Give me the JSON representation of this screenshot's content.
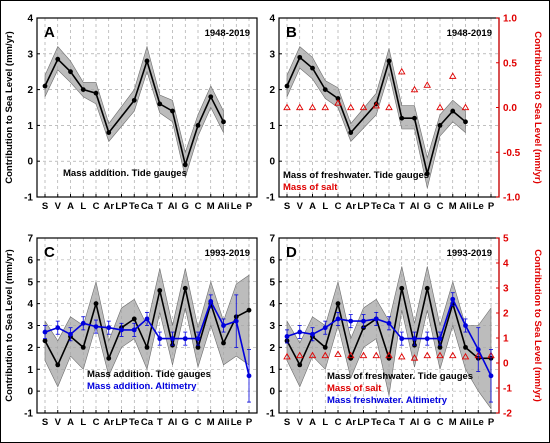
{
  "figure_border_color": "#000000",
  "colors": {
    "black": "#000000",
    "red": "#e00000",
    "blue": "#0000dd",
    "band": "#a6a6a6",
    "grid": "#9a9a9a"
  },
  "station_labels": [
    "S",
    "V",
    "A",
    "L",
    "C",
    "Ar",
    "LP",
    "Te",
    "Ca",
    "T",
    "Al",
    "G",
    "C",
    "M",
    "Ali",
    "Le",
    "P"
  ],
  "chart_data": [
    {
      "panel": "A",
      "type": "line",
      "period": "1948-2019",
      "ylabel": "Contribution to Sea Level (mm/yr)",
      "ylim": [
        -1,
        4
      ],
      "y_ticks": [
        -1,
        0,
        1,
        2,
        3,
        4
      ],
      "y2label": "",
      "grid": true,
      "annotation": [
        "Mass addition. Tide gauges"
      ],
      "series": [
        {
          "color": "black",
          "marker": "dot",
          "band": true,
          "points": [
            [
              0,
              2.1
            ],
            [
              1,
              2.85
            ],
            [
              2,
              2.5
            ],
            [
              3,
              2.0
            ],
            [
              4,
              1.9
            ],
            [
              5,
              0.8
            ],
            [
              7,
              1.7
            ],
            [
              8,
              2.8
            ],
            [
              9,
              1.6
            ],
            [
              10,
              1.4
            ],
            [
              11,
              -0.1
            ],
            [
              12,
              1.0
            ],
            [
              13,
              1.8
            ],
            [
              14,
              1.1
            ]
          ],
          "band_lo": [
            1.8,
            2.55,
            2.2,
            1.8,
            1.6,
            0.55,
            1.4,
            2.5,
            1.35,
            1.1,
            -0.45,
            0.7,
            1.5,
            0.8
          ],
          "band_hi": [
            2.4,
            3.2,
            2.8,
            2.2,
            2.2,
            1.05,
            2.0,
            3.2,
            1.85,
            1.7,
            0.25,
            1.3,
            2.1,
            1.4
          ]
        }
      ]
    },
    {
      "panel": "B",
      "type": "line",
      "period": "1948-2019",
      "ylabel": "",
      "ylim": [
        -1,
        4
      ],
      "y_ticks": [
        -1,
        0,
        1,
        2,
        3,
        4
      ],
      "y2label": "Contribution to Sea Level (mm/yr)",
      "y2lim": [
        -1,
        1
      ],
      "y2_ticks": [
        -1,
        -0.5,
        0,
        0.5,
        1
      ],
      "y2_tick_labels": [
        "-1.0",
        "-0.5",
        "0.0",
        "0.5",
        "1.0"
      ],
      "grid": true,
      "annotation": [
        "Mass of freshwater. Tide gauges",
        "Mass of salt"
      ],
      "series": [
        {
          "color": "black",
          "marker": "dot",
          "band": true,
          "points": [
            [
              0,
              2.1
            ],
            [
              1,
              2.9
            ],
            [
              2,
              2.6
            ],
            [
              3,
              2.0
            ],
            [
              4,
              1.75
            ],
            [
              5,
              0.8
            ],
            [
              7,
              1.6
            ],
            [
              8,
              2.8
            ],
            [
              9,
              1.2
            ],
            [
              10,
              1.2
            ],
            [
              11,
              -0.35
            ],
            [
              12,
              1.0
            ],
            [
              13,
              1.4
            ],
            [
              14,
              1.1
            ]
          ],
          "band_lo": [
            1.8,
            2.6,
            2.3,
            1.75,
            1.5,
            0.55,
            1.3,
            2.45,
            0.9,
            0.9,
            -0.75,
            0.7,
            1.1,
            0.8
          ],
          "band_hi": [
            2.4,
            3.2,
            2.9,
            2.25,
            2.05,
            1.05,
            1.9,
            3.15,
            1.55,
            1.55,
            0.1,
            1.3,
            1.7,
            1.4
          ]
        },
        {
          "color": "red",
          "marker": "triangle",
          "axis": "right",
          "points": [
            [
              0,
              0
            ],
            [
              1,
              0
            ],
            [
              2,
              0
            ],
            [
              3,
              0
            ],
            [
              4,
              0.05
            ],
            [
              5,
              0
            ],
            [
              6,
              0
            ],
            [
              7,
              0.02
            ],
            [
              8,
              0
            ],
            [
              9,
              0.4
            ],
            [
              10,
              0.2
            ],
            [
              11,
              0.25
            ],
            [
              12,
              0
            ],
            [
              13,
              0.35
            ],
            [
              14,
              0
            ]
          ]
        }
      ]
    },
    {
      "panel": "C",
      "type": "line",
      "period": "1993-2019",
      "ylabel": "Contribution to Sea Level (mm/yr)",
      "ylim": [
        -1,
        7
      ],
      "y_ticks": [
        -1,
        0,
        1,
        2,
        3,
        4,
        5,
        6,
        7
      ],
      "y2label": "",
      "grid": true,
      "annotation": [
        "Mass addition. Tide gauges",
        "Mass addition. Altimetry"
      ],
      "series": [
        {
          "color": "black",
          "marker": "dot",
          "band": true,
          "points": [
            [
              0,
              2.3
            ],
            [
              1,
              1.2
            ],
            [
              2,
              2.5
            ],
            [
              3,
              2.0
            ],
            [
              4,
              4.0
            ],
            [
              5,
              1.5
            ],
            [
              6,
              2.9
            ],
            [
              7,
              3.3
            ],
            [
              8,
              2.0
            ],
            [
              9,
              4.6
            ],
            [
              10,
              2.1
            ],
            [
              11,
              4.7
            ],
            [
              12,
              2.0
            ],
            [
              13,
              4.0
            ],
            [
              14,
              2.2
            ],
            [
              15,
              3.4
            ],
            [
              16,
              3.7
            ]
          ],
          "band_lo": [
            1.4,
            0.2,
            1.6,
            1.0,
            3.0,
            0.7,
            2.0,
            2.4,
            1.0,
            3.6,
            1.2,
            3.8,
            1.1,
            3.0,
            1.2,
            1.6,
            1.2
          ],
          "band_hi": [
            3.2,
            2.3,
            3.4,
            3.0,
            5.0,
            2.3,
            3.8,
            4.2,
            3.0,
            5.6,
            3.0,
            5.6,
            2.9,
            5.0,
            3.2,
            4.9,
            5.3
          ]
        },
        {
          "color": "blue",
          "marker": "dot",
          "error_bars": true,
          "points": [
            [
              0,
              2.7
            ],
            [
              1,
              2.9
            ],
            [
              2,
              2.6
            ],
            [
              3,
              3.1
            ],
            [
              4,
              2.95
            ],
            [
              5,
              2.9
            ],
            [
              6,
              2.8
            ],
            [
              7,
              2.8
            ],
            [
              8,
              3.3
            ],
            [
              9,
              2.4
            ],
            [
              10,
              2.4
            ],
            [
              11,
              2.4
            ],
            [
              12,
              2.4
            ],
            [
              13,
              4.1
            ],
            [
              14,
              3.0
            ],
            [
              15,
              3.2
            ],
            [
              16,
              0.7
            ]
          ],
          "err": [
            0.3,
            0.3,
            0.3,
            0.3,
            0.3,
            0.3,
            0.3,
            0.3,
            0.3,
            0.3,
            0.3,
            0.3,
            0.3,
            0.3,
            0.3,
            1.2,
            1.2
          ]
        }
      ]
    },
    {
      "panel": "D",
      "type": "line",
      "period": "1993-2019",
      "ylabel": "",
      "ylim": [
        -1,
        7
      ],
      "y_ticks": [
        -1,
        0,
        1,
        2,
        3,
        4,
        5,
        6,
        7
      ],
      "y2label": "Contribution to Sea Level (mm/yr)",
      "y2lim": [
        -2,
        5
      ],
      "y2_ticks": [
        -2,
        -1,
        0,
        1,
        2,
        3,
        4,
        5
      ],
      "grid": true,
      "annotation": [
        "Mass of freshwater. Tide gauges",
        "Mass of salt",
        "Mass freshwater. Altimetry"
      ],
      "series": [
        {
          "color": "black",
          "marker": "dot",
          "band": true,
          "points": [
            [
              0,
              2.3
            ],
            [
              1,
              1.2
            ],
            [
              2,
              2.5
            ],
            [
              3,
              2.0
            ],
            [
              4,
              4.0
            ],
            [
              5,
              1.5
            ],
            [
              6,
              2.9
            ],
            [
              7,
              3.3
            ],
            [
              8,
              1.5
            ],
            [
              9,
              4.7
            ],
            [
              10,
              2.1
            ],
            [
              11,
              4.7
            ],
            [
              12,
              2.0
            ],
            [
              13,
              4.0
            ],
            [
              14,
              2.0
            ],
            [
              15,
              1.5
            ],
            [
              16,
              1.5
            ]
          ],
          "band_lo": [
            1.4,
            0.2,
            1.6,
            1.0,
            3.0,
            0.6,
            2.0,
            2.4,
            -0.2,
            3.7,
            1.1,
            3.7,
            1.0,
            3.0,
            1.0,
            0.0,
            -0.8
          ],
          "band_hi": [
            3.2,
            2.2,
            3.4,
            3.0,
            5.0,
            2.4,
            3.8,
            4.2,
            3.2,
            5.7,
            3.1,
            5.7,
            3.0,
            5.0,
            3.0,
            3.0,
            3.8
          ]
        },
        {
          "color": "red",
          "marker": "triangle",
          "axis": "right",
          "points": [
            [
              0,
              0.25
            ],
            [
              1,
              0.3
            ],
            [
              2,
              0.3
            ],
            [
              3,
              0.3
            ],
            [
              4,
              0.35
            ],
            [
              5,
              0.3
            ],
            [
              6,
              0.3
            ],
            [
              7,
              0.3
            ],
            [
              8,
              0.3
            ],
            [
              9,
              0.25
            ],
            [
              10,
              0.2
            ],
            [
              11,
              0.3
            ],
            [
              12,
              0.3
            ],
            [
              13,
              0.3
            ],
            [
              14,
              0.25
            ],
            [
              15,
              0.3
            ],
            [
              16,
              0.3
            ]
          ]
        },
        {
          "color": "blue",
          "marker": "dot",
          "error_bars": true,
          "points": [
            [
              0,
              2.5
            ],
            [
              1,
              2.7
            ],
            [
              2,
              2.6
            ],
            [
              3,
              2.9
            ],
            [
              4,
              3.3
            ],
            [
              5,
              3.2
            ],
            [
              6,
              3.2
            ],
            [
              7,
              3.3
            ],
            [
              8,
              3.1
            ],
            [
              9,
              2.4
            ],
            [
              10,
              2.4
            ],
            [
              11,
              2.4
            ],
            [
              12,
              2.4
            ],
            [
              13,
              4.2
            ],
            [
              14,
              3.0
            ],
            [
              15,
              1.9
            ],
            [
              16,
              0.7
            ]
          ],
          "err": [
            0.3,
            0.3,
            0.3,
            0.3,
            0.3,
            0.3,
            0.3,
            0.3,
            0.3,
            0.3,
            0.3,
            0.3,
            0.3,
            0.3,
            0.3,
            1.0,
            1.2
          ]
        }
      ]
    }
  ]
}
